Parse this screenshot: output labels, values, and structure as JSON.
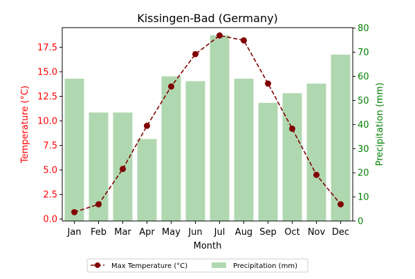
{
  "chart_data": {
    "type": "bar+line",
    "title": "Kissingen-Bad (Germany)",
    "xlabel": "Month",
    "ylabel_left": "Temperature (°C)",
    "ylabel_right": "Precipitation (mm)",
    "categories": [
      "Jan",
      "Feb",
      "Mar",
      "Apr",
      "May",
      "Jun",
      "Jul",
      "Aug",
      "Sep",
      "Oct",
      "Nov",
      "Dec"
    ],
    "ylim_left": [
      -0.2,
      19.5
    ],
    "ylim_right": [
      0,
      80.2
    ],
    "yticks_left": [
      "0.0",
      "2.5",
      "5.0",
      "7.5",
      "10.0",
      "12.5",
      "15.0",
      "17.5"
    ],
    "yticks_right": [
      "0",
      "10",
      "20",
      "30",
      "40",
      "50",
      "60",
      "70",
      "80"
    ],
    "series": [
      {
        "name": "Max Temperature (°C)",
        "kind": "line",
        "axis": "left",
        "color": "#800000",
        "values": [
          0.7,
          1.5,
          5.1,
          9.5,
          13.5,
          16.8,
          18.7,
          18.2,
          13.8,
          9.2,
          4.5,
          1.5
        ]
      },
      {
        "name": "Precipitation (mm)",
        "kind": "bar",
        "axis": "right",
        "color": "#b0d8b0",
        "values": [
          59,
          45,
          45,
          34,
          60,
          58,
          77,
          59,
          49,
          53,
          57,
          69
        ]
      }
    ],
    "left_axis_color": "#ff0000",
    "right_axis_color": "#008000",
    "legend_position": "bottom-center"
  }
}
